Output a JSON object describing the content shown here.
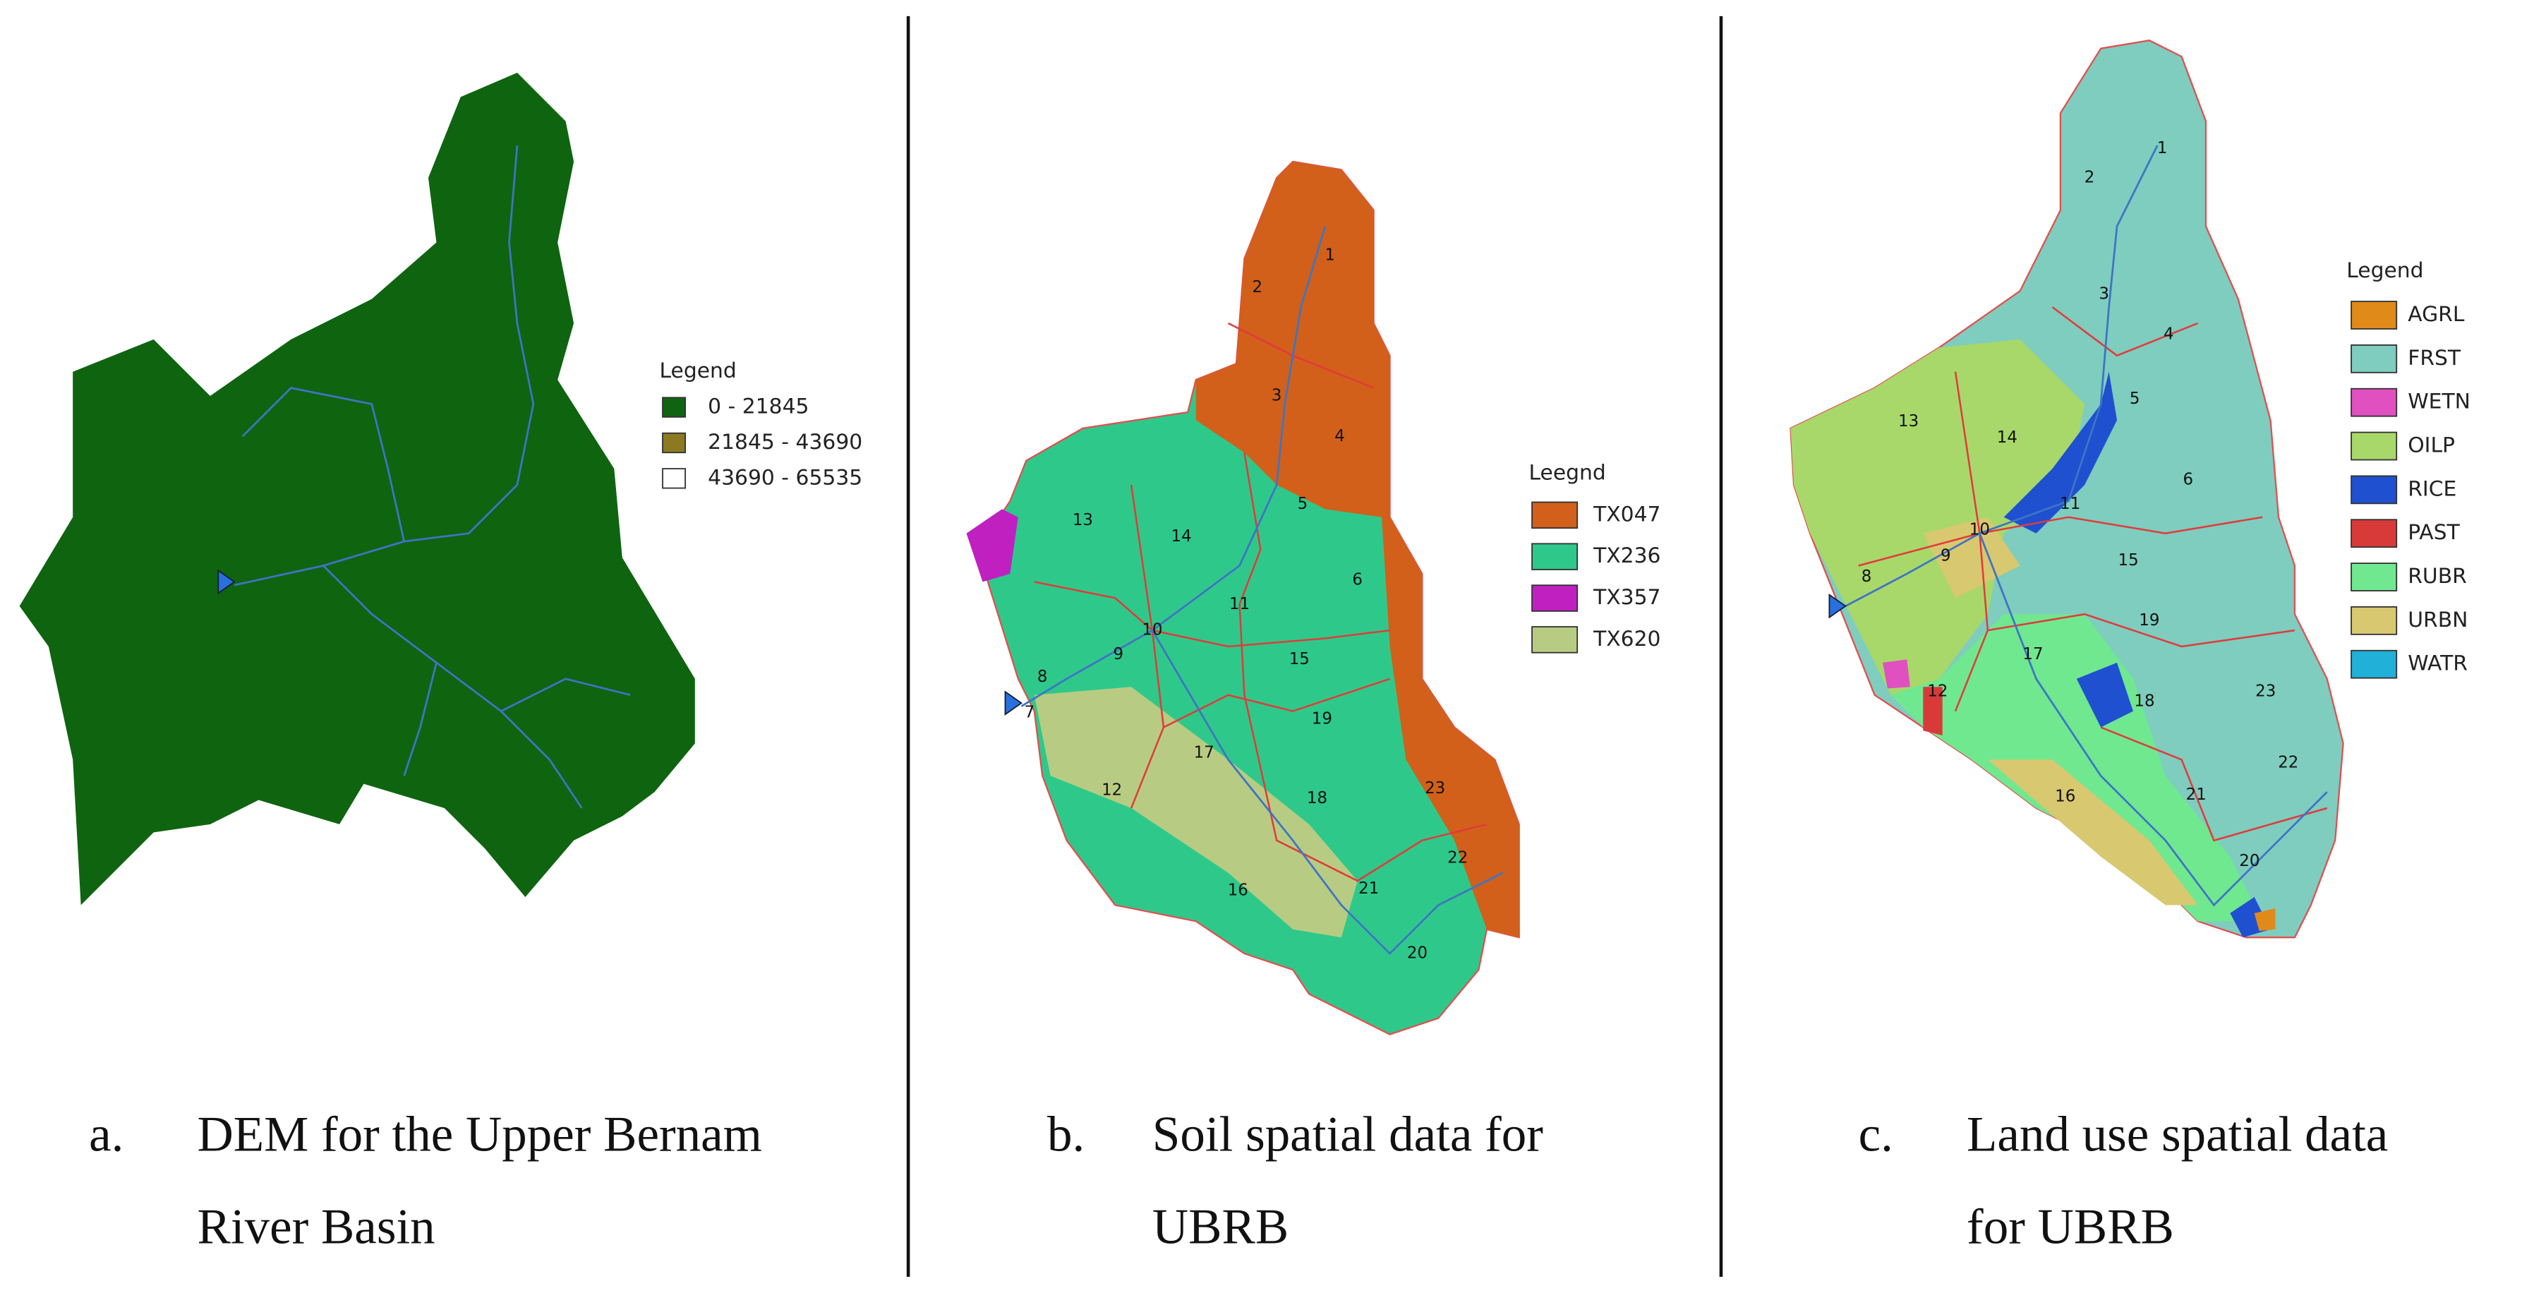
{
  "panels": [
    {
      "legend_title": "Legend",
      "legend_items": [
        {
          "label": "0 - 21845",
          "color": "#0f6410"
        },
        {
          "label": "21845 - 43690",
          "color": "#8b7a1f"
        },
        {
          "label": "43690 - 65535",
          "color": "#ffffff"
        }
      ],
      "caption_marker": "a.",
      "caption_lines": [
        "DEM for the Upper Bernam",
        "River Basin"
      ]
    },
    {
      "legend_title": "Leegnd",
      "legend_items": [
        {
          "label": "TX047",
          "color": "#d2601a"
        },
        {
          "label": "TX236",
          "color": "#2ec98a"
        },
        {
          "label": "TX357",
          "color": "#c020c0"
        },
        {
          "label": "TX620",
          "color": "#b7cc82"
        }
      ],
      "basin_labels": [
        "1",
        "2",
        "3",
        "4",
        "5",
        "6",
        "7",
        "8",
        "9",
        "10",
        "11",
        "12",
        "13",
        "14",
        "15",
        "16",
        "17",
        "18",
        "19",
        "20",
        "21",
        "22",
        "23"
      ],
      "caption_marker": "b.",
      "caption_lines": [
        "Soil spatial data for",
        "UBRB"
      ]
    },
    {
      "legend_title": "Legend",
      "legend_items": [
        {
          "label": "AGRL",
          "color": "#e08a1a"
        },
        {
          "label": "FRST",
          "color": "#7ecdbf"
        },
        {
          "label": "WETN",
          "color": "#e050c0"
        },
        {
          "label": "OILP",
          "color": "#a8d86a"
        },
        {
          "label": "RICE",
          "color": "#1f50d0"
        },
        {
          "label": "PAST",
          "color": "#d83a3a"
        },
        {
          "label": "RUBR",
          "color": "#70e890"
        },
        {
          "label": "URBN",
          "color": "#d8c870"
        },
        {
          "label": "WATR",
          "color": "#20b0d8"
        }
      ],
      "basin_labels": [
        "1",
        "2",
        "3",
        "4",
        "5",
        "6",
        "8",
        "9",
        "10",
        "11",
        "12",
        "13",
        "14",
        "15",
        "16",
        "17",
        "18",
        "19",
        "20",
        "21",
        "22",
        "23"
      ],
      "caption_marker": "c.",
      "caption_lines": [
        "Land use spatial data",
        "for UBRB"
      ]
    }
  ]
}
